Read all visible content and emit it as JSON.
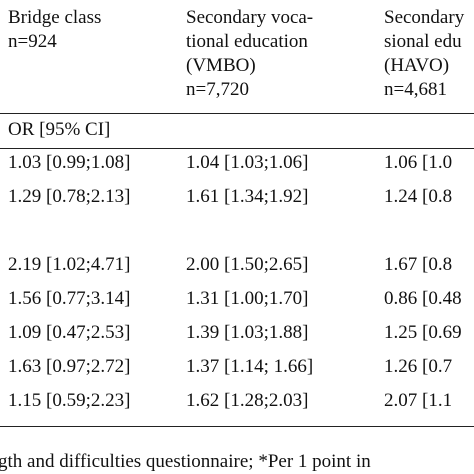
{
  "table": {
    "columns": [
      {
        "header": [
          "Bridge class",
          "n=924"
        ]
      },
      {
        "header": [
          "Secondary voca-",
          "tional education",
          "(VMBO)",
          "n=7,720"
        ]
      },
      {
        "header": [
          "Secondary",
          "sional edu",
          "(HAVO)",
          "n=4,681"
        ]
      }
    ],
    "subheader": "OR [95% CI]",
    "rows": [
      [
        "1.03 [0.99;1.08]",
        "1.04 [1.03;1.06]",
        "1.06 [1.0"
      ],
      [
        "1.29 [0.78;2.13]",
        "1.61 [1.34;1.92]",
        "1.24 [0.8"
      ],
      [
        "2.19 [1.02;4.71]",
        "2.00 [1.50;2.65]",
        "1.67 [0.8"
      ],
      [
        "1.56 [0.77;3.14]",
        "1.31 [1.00;1.70]",
        "0.86 [0.48"
      ],
      [
        "1.09 [0.47;2.53]",
        "1.39 [1.03;1.88]",
        "1.25 [0.69"
      ],
      [
        "1.63 [0.97;2.72]",
        "1.37 [1.14; 1.66]",
        "1.26 [0.7"
      ],
      [
        "1.15 [0.59;2.23]",
        "1.62 [1.28;2.03]",
        "2.07 [1.1"
      ]
    ],
    "footnote": "gth and difficulties questionnaire; *Per 1 point in"
  }
}
